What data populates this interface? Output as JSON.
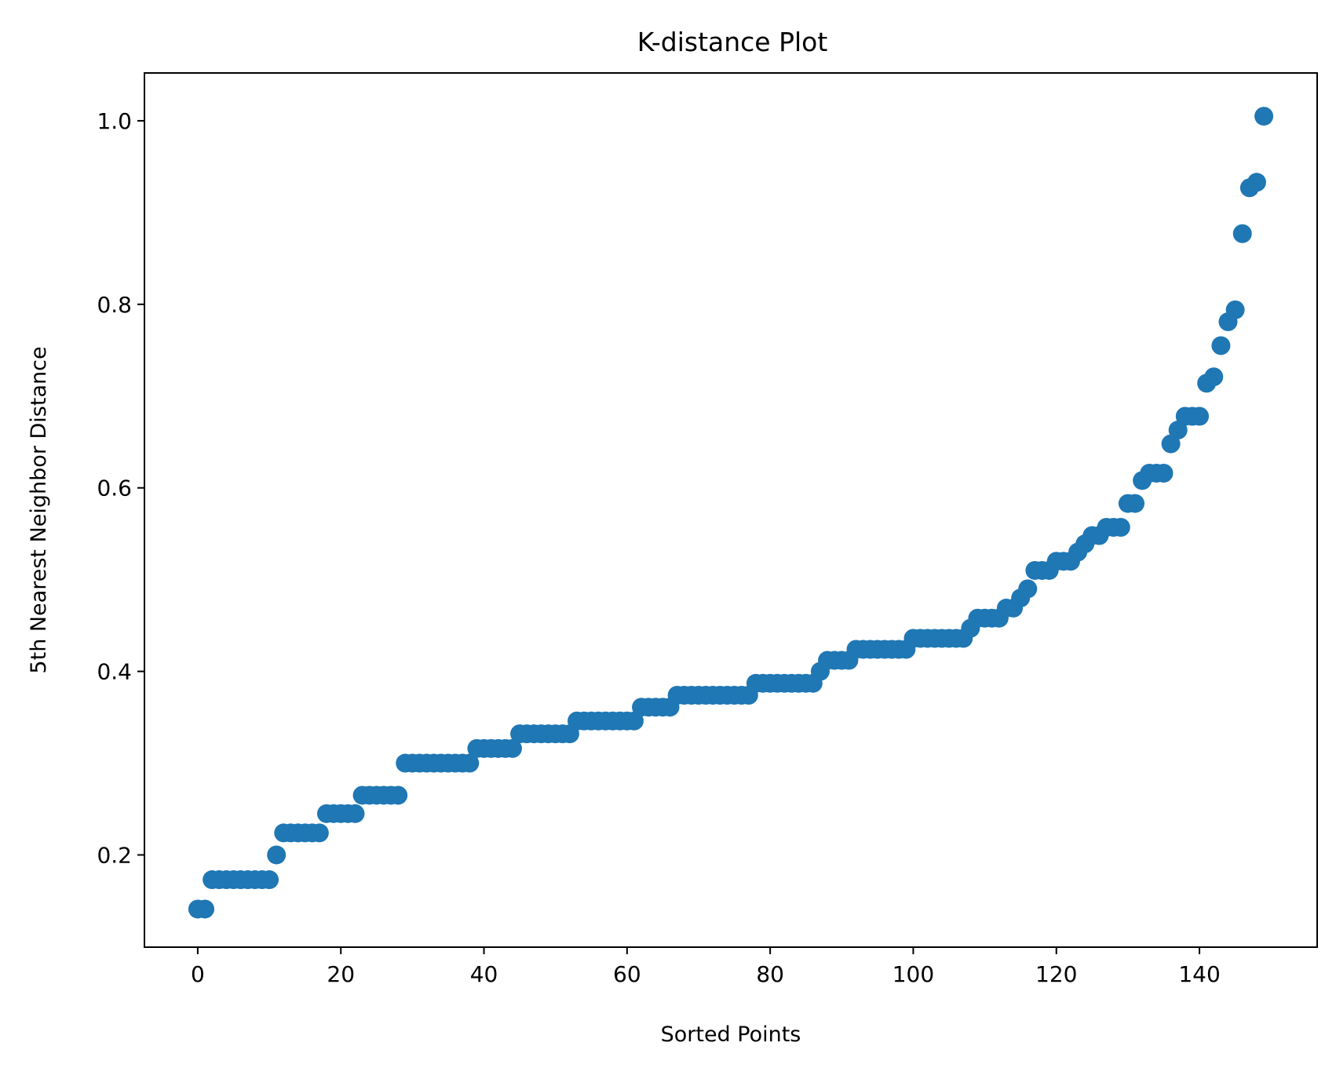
{
  "chart_data": {
    "type": "scatter",
    "title": "K-distance Plot",
    "xlabel": "Sorted Points",
    "ylabel": "5th Nearest Neighbor Distance",
    "xlim": [
      -7.45,
      156.45
    ],
    "ylim": [
      0.0995,
      1.0521
    ],
    "xticks": [
      0,
      20,
      40,
      60,
      80,
      100,
      120,
      140
    ],
    "yticks": [
      0.2,
      0.4,
      0.6,
      0.8,
      1.0
    ],
    "xtick_labels": [
      "0",
      "20",
      "40",
      "60",
      "80",
      "100",
      "120",
      "140"
    ],
    "ytick_labels": [
      "0.2",
      "0.4",
      "0.6",
      "0.8",
      "1.0"
    ],
    "grid": false,
    "legend": "none",
    "color": "#1f77b4",
    "x": [
      0,
      1,
      2,
      3,
      4,
      5,
      6,
      7,
      8,
      9,
      10,
      11,
      12,
      13,
      14,
      15,
      16,
      17,
      18,
      19,
      20,
      21,
      22,
      23,
      24,
      25,
      26,
      27,
      28,
      29,
      30,
      31,
      32,
      33,
      34,
      35,
      36,
      37,
      38,
      39,
      40,
      41,
      42,
      43,
      44,
      45,
      46,
      47,
      48,
      49,
      50,
      51,
      52,
      53,
      54,
      55,
      56,
      57,
      58,
      59,
      60,
      61,
      62,
      63,
      64,
      65,
      66,
      67,
      68,
      69,
      70,
      71,
      72,
      73,
      74,
      75,
      76,
      77,
      78,
      79,
      80,
      81,
      82,
      83,
      84,
      85,
      86,
      87,
      88,
      89,
      90,
      91,
      92,
      93,
      94,
      95,
      96,
      97,
      98,
      99,
      100,
      101,
      102,
      103,
      104,
      105,
      106,
      107,
      108,
      109,
      110,
      111,
      112,
      113,
      114,
      115,
      116,
      117,
      118,
      119,
      120,
      121,
      122,
      123,
      124,
      125,
      126,
      127,
      128,
      129,
      130,
      131,
      132,
      133,
      134,
      135,
      136,
      137,
      138,
      139,
      140,
      141,
      142,
      143,
      144,
      145,
      146,
      147,
      148,
      149
    ],
    "y": [
      0.141,
      0.141,
      0.173,
      0.173,
      0.173,
      0.173,
      0.173,
      0.173,
      0.173,
      0.173,
      0.173,
      0.2,
      0.224,
      0.224,
      0.224,
      0.224,
      0.224,
      0.224,
      0.245,
      0.245,
      0.245,
      0.245,
      0.245,
      0.265,
      0.265,
      0.265,
      0.265,
      0.265,
      0.265,
      0.3,
      0.3,
      0.3,
      0.3,
      0.3,
      0.3,
      0.3,
      0.3,
      0.3,
      0.3,
      0.316,
      0.316,
      0.316,
      0.316,
      0.316,
      0.316,
      0.332,
      0.332,
      0.332,
      0.332,
      0.332,
      0.332,
      0.332,
      0.332,
      0.346,
      0.346,
      0.346,
      0.346,
      0.346,
      0.346,
      0.346,
      0.346,
      0.346,
      0.361,
      0.361,
      0.361,
      0.361,
      0.361,
      0.374,
      0.374,
      0.374,
      0.374,
      0.374,
      0.374,
      0.374,
      0.374,
      0.374,
      0.374,
      0.374,
      0.387,
      0.387,
      0.387,
      0.387,
      0.387,
      0.387,
      0.387,
      0.387,
      0.387,
      0.4,
      0.412,
      0.412,
      0.412,
      0.412,
      0.424,
      0.424,
      0.424,
      0.424,
      0.424,
      0.424,
      0.424,
      0.424,
      0.436,
      0.436,
      0.436,
      0.436,
      0.436,
      0.436,
      0.436,
      0.436,
      0.447,
      0.458,
      0.458,
      0.458,
      0.458,
      0.469,
      0.469,
      0.48,
      0.49,
      0.51,
      0.51,
      0.51,
      0.52,
      0.52,
      0.52,
      0.53,
      0.539,
      0.548,
      0.548,
      0.557,
      0.557,
      0.557,
      0.583,
      0.583,
      0.608,
      0.616,
      0.616,
      0.616,
      0.648,
      0.663,
      0.678,
      0.678,
      0.678,
      0.714,
      0.721,
      0.755,
      0.781,
      0.794,
      0.877,
      0.927,
      0.933,
      1.005
    ]
  }
}
